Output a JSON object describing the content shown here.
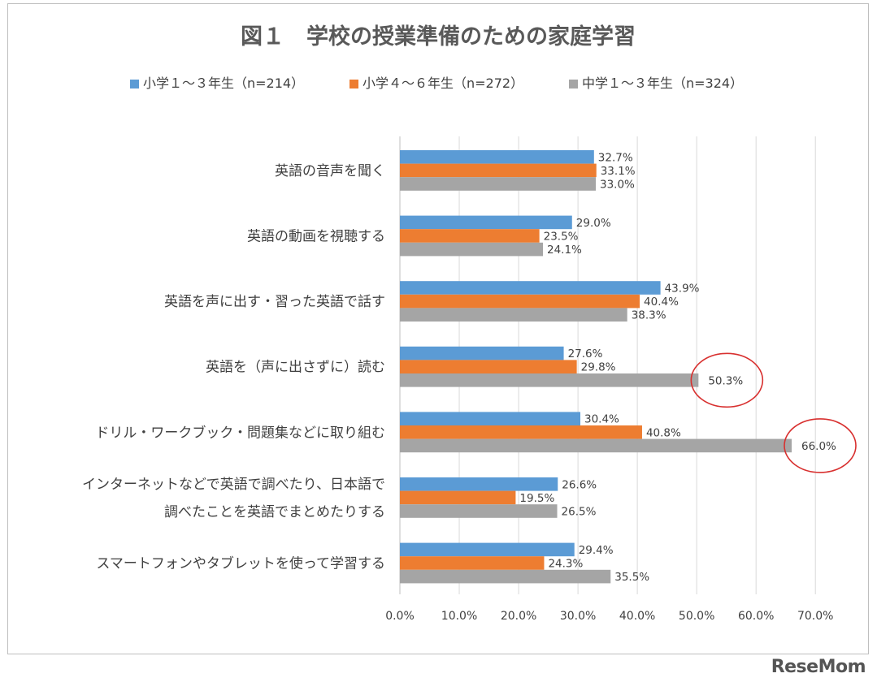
{
  "chart_data": {
    "type": "bar",
    "orientation": "horizontal",
    "title": "図１　学校の授業準備のための家庭学習",
    "categories": [
      [
        "英語の音声を聞く"
      ],
      [
        "英語の動画を視聴する"
      ],
      [
        "英語を声に出す・習った英語で話す"
      ],
      [
        "英語を（声に出さずに）読む"
      ],
      [
        "ドリル・ワークブック・問題集などに取り組む"
      ],
      [
        "インターネットなどで英語で調べたり、日本語で",
        "調べたことを英語でまとめたりする"
      ],
      [
        "スマートフォンやタブレットを使って学習する"
      ]
    ],
    "series": [
      {
        "name": "小学１～３年生（n=214）",
        "color": "#5b9bd5",
        "values": [
          32.7,
          29.0,
          43.9,
          27.6,
          30.4,
          26.6,
          29.4
        ]
      },
      {
        "name": "小学４～６年生（n=272）",
        "color": "#ed7d31",
        "values": [
          33.1,
          23.5,
          40.4,
          29.8,
          40.8,
          19.5,
          24.3
        ]
      },
      {
        "name": "中学１～３年生（n=324）",
        "color": "#a5a5a5",
        "values": [
          33.0,
          24.1,
          38.3,
          50.3,
          66.0,
          26.5,
          35.5
        ]
      }
    ],
    "value_unit": "%",
    "xlim": [
      0,
      70
    ],
    "xticks": [
      "0.0%",
      "10.0%",
      "20.0%",
      "30.0%",
      "40.0%",
      "50.0%",
      "60.0%",
      "70.0%"
    ],
    "grid": true,
    "legend_position": "top",
    "highlighted": [
      {
        "category_index": 3,
        "series_index": 2,
        "style": "red circle"
      },
      {
        "category_index": 4,
        "series_index": 2,
        "style": "red circle"
      }
    ]
  },
  "watermark": "ReseMom"
}
